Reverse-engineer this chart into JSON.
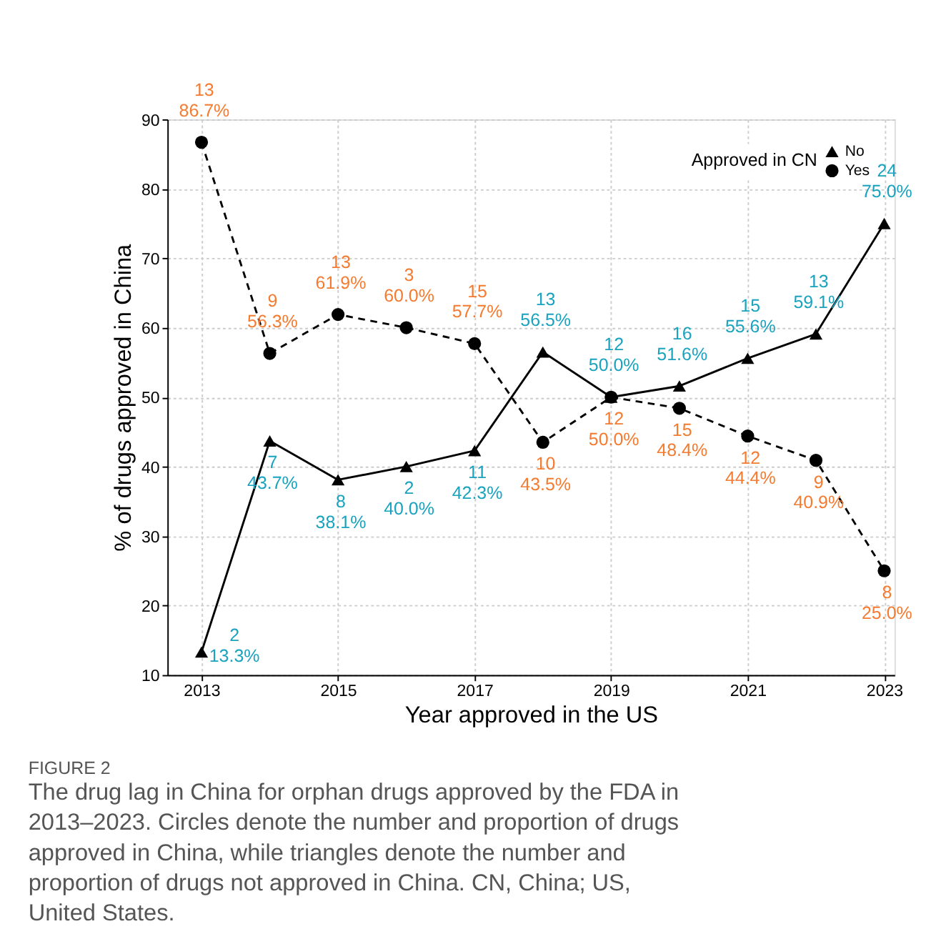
{
  "chart_data": {
    "type": "line",
    "title": "FIGURE 2",
    "annotations": [
      "The drug lag in China for orphan drugs approved by the FDA in 2013–2023. Circles denote the number and proportion of drugs approved in China, while triangles denote the number and proportion of drugs not approved in China. CN, China; US, United States."
    ],
    "xlabel": "Year approved in the US",
    "ylabel": "% of drugs approved in China",
    "legend_title": "Approved in CN",
    "x": [
      2013,
      2014,
      2015,
      2016,
      2017,
      2018,
      2019,
      2020,
      2021,
      2022,
      2023
    ],
    "series": [
      {
        "name": "No",
        "color": "#000000",
        "marker": "triangle",
        "line_style": "solid",
        "values": [
          13.3,
          43.7,
          38.1,
          40.0,
          42.3,
          56.5,
          50.0,
          51.6,
          55.6,
          59.1,
          75.0
        ],
        "value_labels": [
          "2\n13.3%",
          "7\n43.7%",
          "8\n38.1%",
          "2\n40.0%",
          "11\n42.3%",
          "13\n56.5%",
          "12\n50.0%",
          "16\n51.6%",
          "15\n55.6%",
          "13\n59.1%",
          "24\n75.0%"
        ]
      },
      {
        "name": "Yes",
        "color": "#000000",
        "marker": "circle",
        "line_style": "dashed",
        "values": [
          86.7,
          56.3,
          61.9,
          60.0,
          57.7,
          43.5,
          50.0,
          48.4,
          44.4,
          40.9,
          25.0
        ],
        "value_labels": [
          "13\n86.7%",
          "9\n56.3%",
          "13\n61.9%",
          "3\n60.0%",
          "15\n57.7%",
          "10\n43.5%",
          "12\n50.0%",
          "15\n48.4%",
          "12\n44.4%",
          "9\n40.9%",
          "8\n25.0%"
        ]
      }
    ],
    "xlim": [
      2012.5,
      2023.15
    ],
    "xticks": [
      2013,
      2015,
      2017,
      2019,
      2021,
      2023
    ],
    "ylim": [
      10,
      90
    ],
    "yticks": [
      10,
      20,
      30,
      40,
      50,
      60,
      70,
      80,
      90
    ],
    "grid": true,
    "legend": "top right"
  }
}
